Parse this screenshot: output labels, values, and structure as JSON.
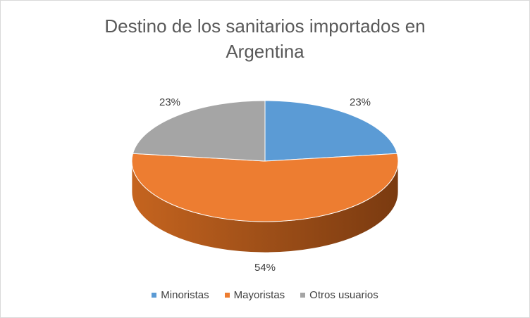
{
  "chart_data": {
    "type": "pie",
    "title_lines": [
      "Destino de los sanitarios importados en",
      "Argentina"
    ],
    "categories": [
      "Minoristas",
      "Mayoristas",
      "Otros usuarios"
    ],
    "values": [
      23,
      54,
      23
    ],
    "data_labels": [
      "23%",
      "54%",
      "23%"
    ],
    "colors": [
      "#5b9bd5",
      "#ed7d31",
      "#a5a5a5"
    ],
    "side_colors": [
      "#3a6fa0",
      "#b35b1f",
      "#7b7b7b"
    ],
    "legend_position": "bottom",
    "style": "3d"
  }
}
